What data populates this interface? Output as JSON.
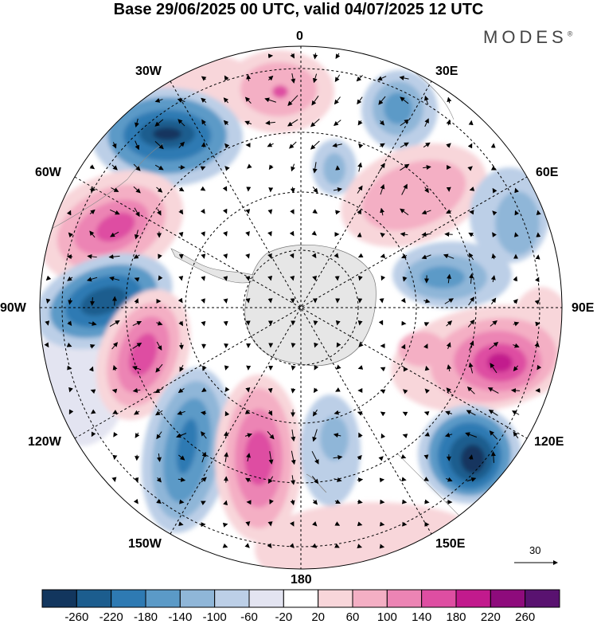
{
  "header": {
    "title": "Base 29/06/2025 00 UTC, valid 04/07/2025 12 UTC",
    "brand": "MODES",
    "brand_mark": "®"
  },
  "map": {
    "projection": "south-polar-stereographic",
    "longitude_labels": {
      "lon_0": "0",
      "lon_30e": "30E",
      "lon_60e": "60E",
      "lon_90e": "90E",
      "lon_120e": "120E",
      "lon_150e": "150E",
      "lon_180": "180",
      "lon_150w": "150W",
      "lon_120w": "120W",
      "lon_90w": "90W",
      "lon_60w": "60W",
      "lon_30w": "30W"
    },
    "reference_vector": "30"
  },
  "colorbar": {
    "labels": [
      "-260",
      "-220",
      "-180",
      "-140",
      "-100",
      "-60",
      "-20",
      "20",
      "60",
      "100",
      "140",
      "180",
      "220",
      "260"
    ],
    "colors": [
      "#12365e",
      "#1c5d8e",
      "#2e7ab3",
      "#5b9ac7",
      "#8fb6d8",
      "#bccfe7",
      "#e3e4f1",
      "#ffffff",
      "#f8d6da",
      "#f4afc4",
      "#ec84b4",
      "#de4ea2",
      "#c21a8d",
      "#8e0b7c",
      "#591270"
    ]
  },
  "colors": {
    "land": "#e6e6e6",
    "coast": "#777777"
  }
}
